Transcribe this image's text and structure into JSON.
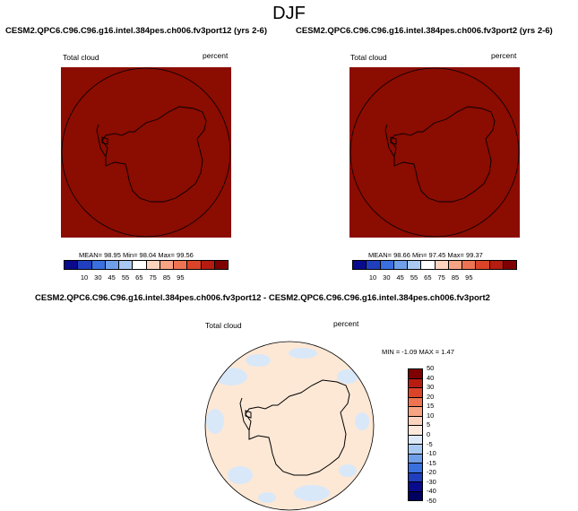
{
  "page_title": "DJF",
  "panels": [
    {
      "case_title": "CESM2.QPC6.C96.C96.g16.intel.384pes.ch006.fv3port12 (yrs 2-6)",
      "var_label": "Total cloud",
      "units": "percent",
      "stats": "MEAN=  98.95  Min=  98.04  Max=  99.56"
    },
    {
      "case_title": "CESM2.QPC6.C96.C96.g16.intel.384pes.ch006.fv3port2 (yrs 2-6)",
      "var_label": "Total cloud",
      "units": "percent",
      "stats": "MEAN=  98.66  Min=  97.45  Max=  99.37"
    }
  ],
  "colorbar": {
    "colors": [
      "#0a0a8c",
      "#1f3fbf",
      "#3a6fe0",
      "#6f9fe8",
      "#a9c8f2",
      "#ffffff",
      "#fbd3bf",
      "#f7a484",
      "#ee7353",
      "#db4428",
      "#b71c10",
      "#7f0000"
    ],
    "labels": [
      "10",
      "30",
      "45",
      "55",
      "65",
      "75",
      "85",
      "95"
    ]
  },
  "diff_panel": {
    "case_title": "CESM2.QPC6.C96.C96.g16.intel.384pes.ch006.fv3port12 - CESM2.QPC6.C96.C96.g16.intel.384pes.ch006.fv3port2",
    "var_label": "Total cloud",
    "units": "percent",
    "minmax": "MIN = -1.09 MAX =  1.47",
    "colorbar": {
      "colors": [
        "#7f0000",
        "#b71c10",
        "#db4428",
        "#ee7353",
        "#f7a484",
        "#fbd3bf",
        "#fde9dc",
        "#dce9f8",
        "#a9c8f2",
        "#6f9fe8",
        "#3a6fe0",
        "#1f3fbf",
        "#0a0a8c",
        "#000060"
      ],
      "labels": [
        "50",
        "40",
        "30",
        "20",
        "15",
        "10",
        "5",
        "0",
        "-5",
        "-10",
        "-15",
        "-20",
        "-30",
        "-40",
        "-50"
      ]
    }
  },
  "map_colors": {
    "full_field": "#8b0c00",
    "diff_background": "#fde8d6",
    "diff_patches": "#d9e8f8"
  }
}
